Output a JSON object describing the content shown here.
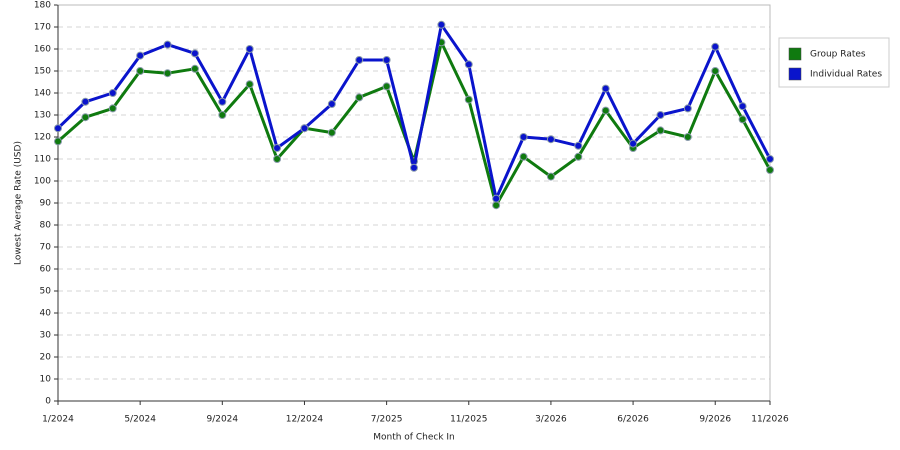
{
  "chart_data": {
    "type": "line",
    "x_label": "Month of Check In",
    "y_label": "Lowest Average Rate (USD)",
    "categories": [
      "1/2024",
      null,
      null,
      "5/2024",
      null,
      null,
      "9/2024",
      null,
      null,
      "12/2024",
      null,
      null,
      "7/2025",
      null,
      null,
      "11/2025",
      null,
      null,
      "3/2026",
      null,
      null,
      "6/2026",
      null,
      null,
      "9/2026",
      null,
      "11/2026"
    ],
    "series": [
      {
        "name": "Group Rates",
        "color": "#0f7a0f",
        "values": [
          118,
          129,
          133,
          150,
          149,
          151,
          130,
          144,
          110,
          124,
          122,
          138,
          143,
          109,
          163,
          137,
          89,
          111,
          102,
          111,
          132,
          115,
          123,
          120,
          150,
          128,
          105
        ]
      },
      {
        "name": "Individual Rates",
        "color": "#0a14cc",
        "values": [
          124,
          136,
          140,
          157,
          162,
          158,
          136,
          160,
          115,
          124,
          135,
          155,
          155,
          106,
          171,
          153,
          92,
          120,
          119,
          116,
          142,
          117,
          130,
          133,
          161,
          134,
          110
        ]
      }
    ],
    "ylim": [
      0,
      180
    ],
    "yticks": [
      0,
      10,
      20,
      30,
      40,
      50,
      60,
      70,
      80,
      90,
      100,
      110,
      120,
      130,
      140,
      150,
      160,
      170,
      180
    ],
    "grid": true,
    "legend": "right"
  }
}
